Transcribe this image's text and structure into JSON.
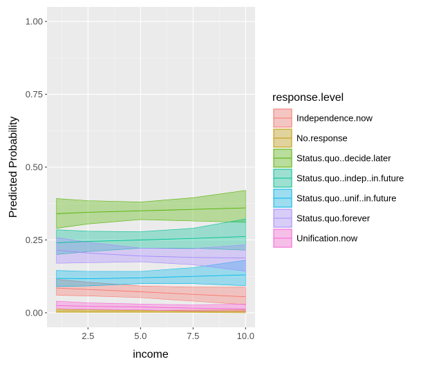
{
  "chart_data": {
    "type": "area",
    "subtype": "ribbon-with-line",
    "xlabel": "income",
    "ylabel": "Predicted Probability",
    "xlim": [
      0.55,
      10.45
    ],
    "ylim": [
      -0.05,
      1.05
    ],
    "x_ticks": [
      2.5,
      5.0,
      7.5,
      10.0
    ],
    "x_tick_labels": [
      "2.5",
      "5.0",
      "7.5",
      "10.0"
    ],
    "y_ticks": [
      0.0,
      0.25,
      0.5,
      0.75,
      1.0
    ],
    "y_tick_labels": [
      "0.00",
      "0.25",
      "0.50",
      "0.75",
      "1.00"
    ],
    "x": [
      1,
      2.5,
      5,
      7.5,
      10
    ],
    "legend_title": "response.level",
    "legend_position": "right",
    "grid": true,
    "series": [
      {
        "name": "Independence.now",
        "color": "#F8766D",
        "mean": [
          0.085,
          0.08,
          0.072,
          0.063,
          0.055
        ],
        "lower": [
          0.06,
          0.058,
          0.052,
          0.04,
          0.028
        ],
        "upper": [
          0.115,
          0.105,
          0.092,
          0.088,
          0.088
        ]
      },
      {
        "name": "No.response",
        "color": "#C49A00",
        "mean": [
          0.006,
          0.005,
          0.005,
          0.004,
          0.004
        ],
        "lower": [
          0.001,
          0.001,
          0.001,
          0.001,
          0.0
        ],
        "upper": [
          0.012,
          0.01,
          0.008,
          0.009,
          0.01
        ]
      },
      {
        "name": "Status.quo..decide.later",
        "color": "#53B400",
        "mean": [
          0.34,
          0.345,
          0.35,
          0.355,
          0.36
        ],
        "lower": [
          0.29,
          0.305,
          0.32,
          0.315,
          0.31
        ],
        "upper": [
          0.392,
          0.385,
          0.38,
          0.395,
          0.42
        ]
      },
      {
        "name": "Status.quo..indep..in.future",
        "color": "#00C094",
        "mean": [
          0.24,
          0.245,
          0.25,
          0.255,
          0.262
        ],
        "lower": [
          0.2,
          0.21,
          0.222,
          0.222,
          0.215
        ],
        "upper": [
          0.285,
          0.28,
          0.278,
          0.29,
          0.322
        ]
      },
      {
        "name": "Status.quo..unif..in.future",
        "color": "#00B6EB",
        "mean": [
          0.118,
          0.117,
          0.12,
          0.125,
          0.13
        ],
        "lower": [
          0.09,
          0.092,
          0.1,
          0.1,
          0.093
        ],
        "upper": [
          0.145,
          0.142,
          0.142,
          0.155,
          0.18
        ]
      },
      {
        "name": "Status.quo.forever",
        "color": "#A58AFF",
        "mean": [
          0.215,
          0.205,
          0.195,
          0.19,
          0.188
        ],
        "lower": [
          0.17,
          0.172,
          0.175,
          0.165,
          0.143
        ],
        "upper": [
          0.258,
          0.242,
          0.222,
          0.22,
          0.233
        ]
      },
      {
        "name": "Unification.now",
        "color": "#FB61D7",
        "mean": [
          0.025,
          0.022,
          0.02,
          0.016,
          0.013
        ],
        "lower": [
          0.014,
          0.012,
          0.01,
          0.006,
          0.003
        ],
        "upper": [
          0.04,
          0.034,
          0.03,
          0.027,
          0.03
        ]
      }
    ]
  }
}
